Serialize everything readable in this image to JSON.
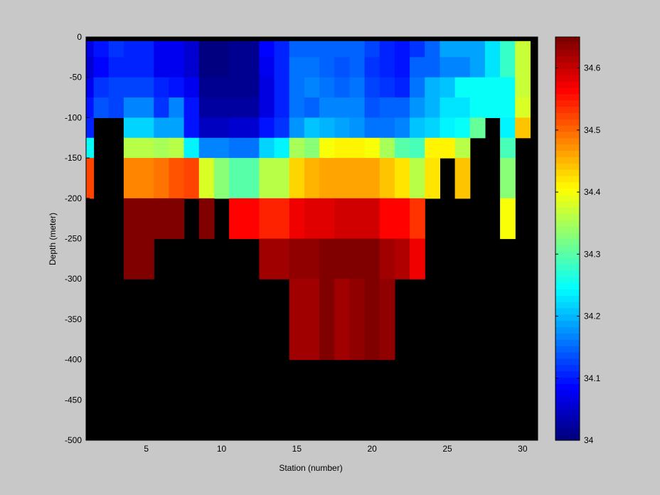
{
  "chart_data": {
    "type": "heatmap",
    "title": "",
    "xlabel": "Station (number)",
    "ylabel": "Depth (meter)",
    "x_range": [
      1,
      31
    ],
    "y_range": [
      -500,
      0
    ],
    "x_ticks": [
      5,
      10,
      15,
      20,
      25,
      30
    ],
    "x_tick_labels": [
      "5",
      "10",
      "15",
      "20",
      "25",
      "30"
    ],
    "y_ticks": [
      0,
      -50,
      -100,
      -150,
      -200,
      -250,
      -300,
      -350,
      -400,
      -450,
      -500
    ],
    "y_tick_labels": [
      "0",
      "-50",
      "-100",
      "-150",
      "-200",
      "-250",
      "-300",
      "-350",
      "-400",
      "-450",
      "-500"
    ],
    "stations": [
      1,
      2,
      3,
      4,
      5,
      6,
      7,
      8,
      9,
      10,
      11,
      12,
      13,
      14,
      15,
      16,
      17,
      18,
      19,
      20,
      21,
      22,
      23,
      24,
      25,
      26,
      27,
      28,
      29,
      30
    ],
    "depth_bins": [
      [
        -5,
        -25
      ],
      [
        -25,
        -50
      ],
      [
        -50,
        -75
      ],
      [
        -75,
        -100
      ],
      [
        -100,
        -125
      ],
      [
        -125,
        -150
      ],
      [
        -150,
        -200
      ],
      [
        -200,
        -250
      ],
      [
        -250,
        -300
      ],
      [
        -300,
        -350
      ],
      [
        -350,
        -400
      ],
      [
        -400,
        -500
      ]
    ],
    "surface_band_color": "#000000",
    "no_data_color": "#000000",
    "colorbar": {
      "colormap": "jet",
      "range": [
        34.0,
        34.65
      ],
      "ticks": [
        34,
        34.1,
        34.2,
        34.3,
        34.4,
        34.5,
        34.6
      ],
      "tick_labels": [
        "34",
        "34.1",
        "34.2",
        "34.3",
        "34.4",
        "34.5",
        "34.6"
      ]
    },
    "values": [
      [
        34.07,
        34.1,
        34.12,
        34.11,
        34.11,
        34.08,
        34.08,
        34.06,
        34.01,
        34.01,
        34.02,
        34.02,
        34.09,
        34.11,
        34.15,
        34.15,
        34.15,
        34.15,
        34.15,
        34.13,
        34.11,
        34.1,
        34.12,
        34.15,
        34.19,
        34.19,
        34.19,
        34.23,
        34.28,
        34.37
      ],
      [
        34.06,
        34.09,
        34.11,
        34.11,
        34.11,
        34.08,
        34.08,
        34.06,
        34.01,
        34.01,
        34.02,
        34.02,
        34.08,
        34.11,
        34.16,
        34.16,
        34.15,
        34.14,
        34.15,
        34.12,
        34.11,
        34.1,
        34.15,
        34.15,
        34.17,
        34.17,
        34.19,
        34.23,
        34.28,
        34.37
      ],
      [
        34.08,
        34.12,
        34.13,
        34.13,
        34.13,
        34.11,
        34.1,
        34.08,
        34.02,
        34.02,
        34.02,
        34.02,
        34.07,
        34.11,
        34.16,
        34.17,
        34.16,
        34.15,
        34.16,
        34.13,
        34.12,
        34.11,
        34.16,
        34.2,
        34.21,
        34.25,
        34.25,
        34.25,
        34.25,
        34.37
      ],
      [
        34.1,
        34.14,
        34.13,
        34.17,
        34.17,
        34.12,
        34.17,
        34.1,
        34.03,
        34.03,
        34.03,
        34.03,
        34.07,
        34.11,
        34.16,
        34.15,
        34.17,
        34.17,
        34.17,
        34.14,
        34.15,
        34.15,
        34.18,
        34.2,
        34.23,
        34.23,
        34.25,
        34.25,
        34.25,
        34.38
      ],
      [
        34.11,
        null,
        null,
        34.22,
        34.22,
        34.19,
        34.19,
        34.1,
        34.05,
        34.05,
        34.06,
        34.06,
        34.1,
        34.12,
        34.18,
        34.21,
        34.2,
        34.19,
        34.18,
        34.16,
        34.16,
        34.17,
        34.21,
        34.22,
        34.24,
        34.25,
        34.31,
        null,
        34.24,
        34.44
      ],
      [
        34.25,
        null,
        null,
        34.36,
        34.36,
        34.35,
        34.36,
        34.24,
        34.17,
        34.17,
        34.16,
        34.16,
        34.22,
        34.24,
        34.35,
        34.33,
        34.4,
        34.41,
        34.41,
        34.4,
        34.35,
        34.3,
        34.29,
        34.41,
        34.41,
        34.36,
        null,
        null,
        34.29,
        null
      ],
      [
        34.52,
        null,
        null,
        34.48,
        34.48,
        34.49,
        34.51,
        34.52,
        34.38,
        34.33,
        34.3,
        34.3,
        34.36,
        34.36,
        34.43,
        34.45,
        34.46,
        34.46,
        34.46,
        34.46,
        34.44,
        34.42,
        34.36,
        34.42,
        null,
        34.44,
        null,
        null,
        34.33,
        null
      ],
      [
        null,
        null,
        null,
        34.64,
        34.64,
        34.64,
        34.64,
        null,
        34.64,
        null,
        34.56,
        34.56,
        34.54,
        34.54,
        34.57,
        34.58,
        34.58,
        34.59,
        34.59,
        34.59,
        34.56,
        34.56,
        34.53,
        null,
        null,
        null,
        null,
        null,
        34.4,
        null
      ],
      [
        null,
        null,
        null,
        34.64,
        34.64,
        null,
        null,
        null,
        null,
        null,
        null,
        null,
        34.62,
        34.62,
        34.63,
        34.63,
        34.65,
        34.64,
        34.65,
        34.65,
        34.62,
        34.61,
        34.57,
        null,
        null,
        null,
        null,
        null,
        null,
        null
      ],
      [
        null,
        null,
        null,
        null,
        null,
        null,
        null,
        null,
        null,
        null,
        null,
        null,
        null,
        null,
        34.62,
        34.62,
        34.64,
        34.62,
        34.63,
        34.64,
        34.63,
        null,
        null,
        null,
        null,
        null,
        null,
        null,
        null,
        null
      ],
      [
        null,
        null,
        null,
        null,
        null,
        null,
        null,
        null,
        null,
        null,
        null,
        null,
        null,
        null,
        34.62,
        34.62,
        34.64,
        34.62,
        34.63,
        34.64,
        34.63,
        null,
        null,
        null,
        null,
        null,
        null,
        null,
        null,
        null
      ],
      [
        null,
        null,
        null,
        null,
        null,
        null,
        null,
        null,
        null,
        null,
        null,
        null,
        null,
        null,
        null,
        null,
        null,
        null,
        null,
        null,
        null,
        null,
        null,
        null,
        null,
        null,
        null,
        null,
        null,
        null
      ]
    ]
  }
}
